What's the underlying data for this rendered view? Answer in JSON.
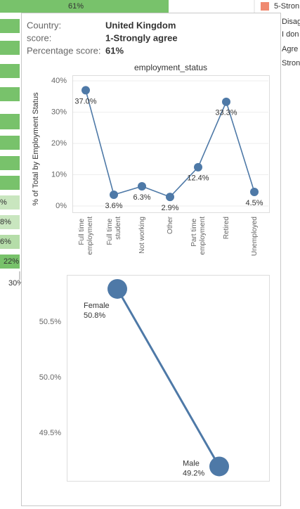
{
  "background": {
    "top_label": "61%",
    "bar_labels": [
      "%",
      "8%",
      "6%",
      "22%"
    ],
    "axis_label": "30%",
    "legend": [
      "5-Stron",
      "Disag",
      "I don",
      "Agre",
      "Stron"
    ]
  },
  "tooltip": {
    "fields": [
      {
        "label": "Country:",
        "value": "United Kingdom"
      },
      {
        "label": "score:",
        "value": "1-Strongly agree"
      },
      {
        "label": "Percentage score:",
        "value": "61%"
      }
    ]
  },
  "chart_data": [
    {
      "type": "line",
      "title": "employment_status",
      "y_label": "% of Total by Employment Status",
      "categories": [
        "Full time employment",
        "Full time student",
        "Not working",
        "Other",
        "Part time employment",
        "Retired",
        "Unemployed"
      ],
      "values": [
        37.0,
        3.6,
        6.3,
        2.9,
        12.4,
        33.3,
        4.5
      ],
      "value_labels": [
        "37.0%",
        "3.6%",
        "6.3%",
        "2.9%",
        "12.4%",
        "33.3%",
        "4.5%"
      ],
      "color": "#4e79a7",
      "ylim": [
        0,
        40
      ],
      "yticks": [
        {
          "value": 0,
          "label": "0%"
        },
        {
          "value": 10,
          "label": "10%"
        },
        {
          "value": 20,
          "label": "20%"
        },
        {
          "value": 30,
          "label": "30%"
        },
        {
          "value": 40,
          "label": "40%"
        }
      ],
      "grid": true
    },
    {
      "type": "line",
      "categories": [
        "Female",
        "Male"
      ],
      "values": [
        50.8,
        49.2
      ],
      "value_labels": [
        "50.8%",
        "49.2%"
      ],
      "color": "#4e79a7",
      "ylim": [
        49.07,
        50.92
      ],
      "yticks": [
        {
          "value": 49.5,
          "label": "49.5%"
        },
        {
          "value": 50.0,
          "label": "50.0%"
        },
        {
          "value": 50.5,
          "label": "50.5%"
        }
      ],
      "grid": false
    }
  ]
}
